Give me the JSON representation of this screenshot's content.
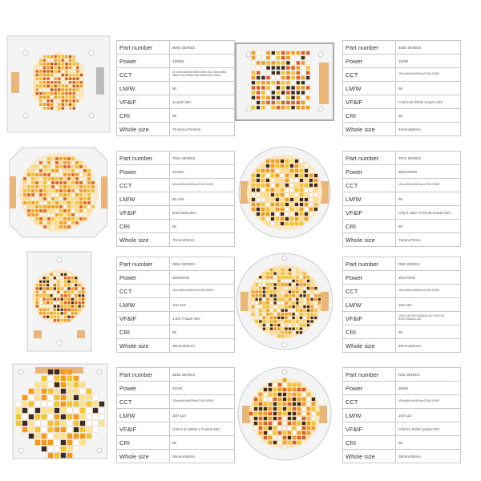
{
  "labels": {
    "part_number": "Part number",
    "power": "Power",
    "cct": "CCT",
    "lmw": "LM/W",
    "vfif": "VF&IF",
    "cri": "CRI",
    "size": "Whole size"
  },
  "products": [
    {
      "image_icon": "square-cob-board-with-hexagon-led-array",
      "part_number": "8080 SERIES",
      "power": "1200W",
      "cct": "AT=420nm/520nm/525-530nm  AS1-450nm/580-598nm  B/G-555nm/450-455nm/520-530nm",
      "lmw": "90",
      "vfif": "1A&40-45V",
      "cri": "95",
      "size": "79.5mmx79.5mm"
    },
    {
      "image_icon": "rectangular-cob-board-with-led-grid",
      "part_number": "4050 SERIES",
      "power": "180W",
      "cct": "420nm/460nm/520nm/2700K-5000K",
      "lmw": "90",
      "vfif": "C/W:2.8A RGB:1A&21-24V",
      "cri": "95",
      "size": "40mmx50mm"
    },
    {
      "image_icon": "rounded-square-cob-board-with-circular-led-array",
      "part_number": "7062 SERIES",
      "power": "2100W",
      "cct": "420nm/460nm/520nm/2700K-5000K",
      "lmw": "80-100",
      "vfif": "5/10A&58-62V",
      "cri": "95",
      "size": "70mmx62mm"
    },
    {
      "image_icon": "round-cob-board-with-circular-led-array",
      "part_number": "7870 SERIES",
      "power": "850/1000W",
      "cct": "420nm/460nm/520nm/2700K-5000K",
      "lmw": "90",
      "vfif": "C/W:1.35/2.7A RGB:1A&44-50V",
      "cri": "95",
      "size": "78mmx70mm"
    },
    {
      "image_icon": "tall-rectangular-cob-board-with-circular-led-array",
      "part_number": "3856 SERIES",
      "power": "300/500W",
      "cct": "420nm/460nm/520nm/2700K-5000K",
      "lmw": "100-110",
      "vfif": "1.5/2.7A&36-39V",
      "cri": "95",
      "size": "38mmx56mm"
    },
    {
      "image_icon": "round-cob-board-with-dense-led-array",
      "part_number": "R50 SERIES",
      "power": "300/700W",
      "cct": "420nm/460nm/520nm/2700K-5000K",
      "lmw": "100-110",
      "vfif": "C/W:1.4A RGB:0.82A&40-46V  C/W:4.5A RGB:2.05A&42-45V",
      "cri": "95",
      "size": "50mmx50mm"
    },
    {
      "image_icon": "square-cob-board-with-sparse-led-grid",
      "part_number": "3535 SERIES",
      "power": "210W",
      "cct": "420nm/460nm/520nm/2700K-5000K",
      "lmw": "100-110",
      "vfif": "C/W:3.4A RGB:1.7A&16-18V",
      "cri": "95",
      "size": "35mmx35mm"
    },
    {
      "image_icon": "round-cob-board-with-led-array",
      "part_number": "R35 SERIES",
      "power": "260W",
      "cct": "420nm/460nm/520nm/2700K-5000K",
      "lmw": "100-110",
      "vfif": "C/W:2A RGB:1A&34-37V",
      "cri": "95",
      "size": "35mmx35mm"
    }
  ]
}
